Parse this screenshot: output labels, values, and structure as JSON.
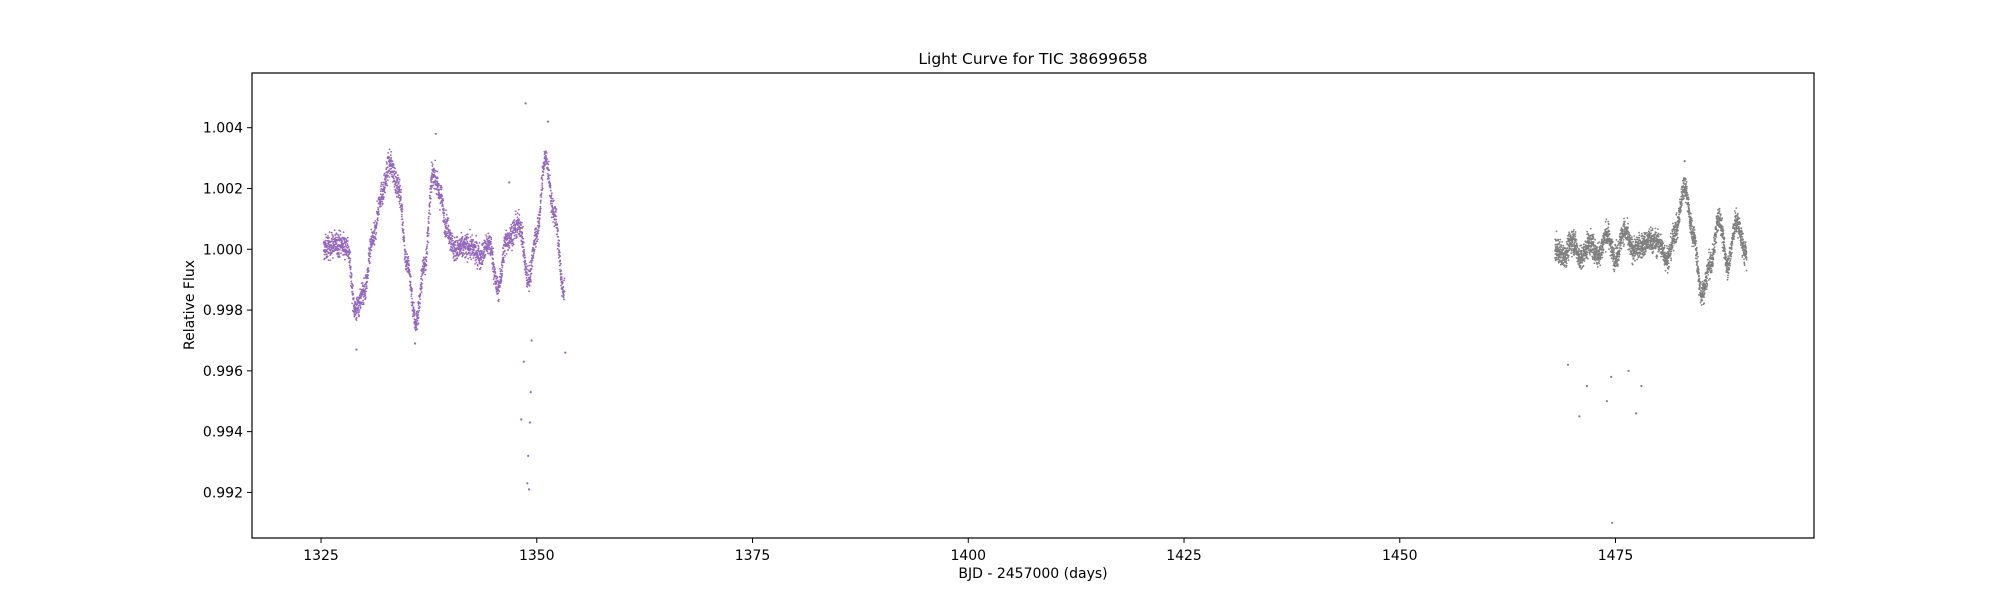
{
  "chart_data": {
    "type": "scatter",
    "title": "Light Curve for TIC 38699658",
    "xlabel": "BJD - 2457000 (days)",
    "ylabel": "Relative Flux",
    "xlim": [
      1317,
      1498
    ],
    "ylim": [
      0.9905,
      1.0058
    ],
    "x_ticks": [
      1325,
      1350,
      1375,
      1400,
      1425,
      1450,
      1475
    ],
    "y_ticks": [
      0.992,
      0.994,
      0.996,
      0.998,
      1.0,
      1.002,
      1.004
    ],
    "x_tick_labels": [
      "1325",
      "1350",
      "1375",
      "1400",
      "1425",
      "1450",
      "1475"
    ],
    "y_tick_labels": [
      "0.992",
      "0.994",
      "0.996",
      "0.998",
      "1.000",
      "1.002",
      "1.004"
    ],
    "grid": false,
    "legend": "none",
    "series": [
      {
        "color": "#9467bd",
        "x_range": [
          1325.3,
          1353.2
        ],
        "trend": [
          [
            1325.3,
            1.0
          ],
          [
            1326.0,
            1.0001
          ],
          [
            1327.0,
            1.0002
          ],
          [
            1328.0,
            1.0001
          ],
          [
            1329.0,
            0.998
          ],
          [
            1330.0,
            0.9986
          ],
          [
            1331.0,
            1.0003
          ],
          [
            1332.0,
            1.0018
          ],
          [
            1333.0,
            1.0028
          ],
          [
            1334.0,
            1.002
          ],
          [
            1335.0,
            0.9995
          ],
          [
            1336.0,
            0.9976
          ],
          [
            1337.0,
            0.9995
          ],
          [
            1338.0,
            1.0025
          ],
          [
            1338.8,
            1.0018
          ],
          [
            1339.5,
            1.0008
          ],
          [
            1340.5,
            1.0
          ],
          [
            1342.0,
            1.0001
          ],
          [
            1343.5,
            0.9998
          ],
          [
            1344.5,
            1.0002
          ],
          [
            1345.5,
            0.9987
          ],
          [
            1346.5,
            1.0003
          ],
          [
            1348.0,
            1.0008
          ],
          [
            1349.0,
            0.999
          ],
          [
            1350.0,
            1.0005
          ],
          [
            1351.0,
            1.003
          ],
          [
            1352.0,
            1.0012
          ],
          [
            1353.2,
            0.9985
          ]
        ],
        "scatter": 0.0004,
        "outliers": [
          [
            1348.7,
            1.0048
          ],
          [
            1351.3,
            1.0042
          ],
          [
            1338.3,
            1.0038
          ],
          [
            1346.8,
            1.0022
          ],
          [
            1348.2,
            0.9944
          ],
          [
            1348.9,
            0.9923
          ],
          [
            1349.1,
            0.9921
          ],
          [
            1349.0,
            0.9932
          ],
          [
            1349.2,
            0.9943
          ],
          [
            1349.3,
            0.9953
          ],
          [
            1348.5,
            0.9963
          ],
          [
            1349.4,
            0.997
          ],
          [
            1329.1,
            0.9967
          ],
          [
            1335.9,
            0.9969
          ],
          [
            1353.3,
            0.9966
          ]
        ]
      },
      {
        "color": "#7f7f7f",
        "x_range": [
          1468.0,
          1490.2
        ],
        "trend": [
          [
            1468.0,
            1.0
          ],
          [
            1469.0,
            0.9998
          ],
          [
            1470.0,
            1.0003
          ],
          [
            1471.0,
            0.9997
          ],
          [
            1472.0,
            1.0002
          ],
          [
            1473.0,
            0.9998
          ],
          [
            1474.0,
            1.0005
          ],
          [
            1475.0,
            0.9997
          ],
          [
            1476.0,
            1.0006
          ],
          [
            1477.0,
            1.0
          ],
          [
            1478.0,
            1.0001
          ],
          [
            1479.0,
            1.0003
          ],
          [
            1480.0,
            1.0002
          ],
          [
            1481.0,
            0.9997
          ],
          [
            1482.0,
            1.0006
          ],
          [
            1483.0,
            1.0021
          ],
          [
            1484.0,
            1.0005
          ],
          [
            1485.0,
            0.9985
          ],
          [
            1486.0,
            0.9995
          ],
          [
            1487.0,
            1.001
          ],
          [
            1488.0,
            0.9995
          ],
          [
            1489.0,
            1.0009
          ],
          [
            1490.2,
            0.9998
          ]
        ],
        "scatter": 0.0004,
        "outliers": [
          [
            1469.5,
            0.9962
          ],
          [
            1471.7,
            0.9955
          ],
          [
            1474.6,
            0.991
          ],
          [
            1470.8,
            0.9945
          ],
          [
            1477.4,
            0.9946
          ],
          [
            1474.0,
            0.995
          ],
          [
            1478.0,
            0.9955
          ],
          [
            1483.0,
            1.0029
          ],
          [
            1474.5,
            0.9958
          ],
          [
            1476.5,
            0.996
          ]
        ]
      }
    ]
  }
}
